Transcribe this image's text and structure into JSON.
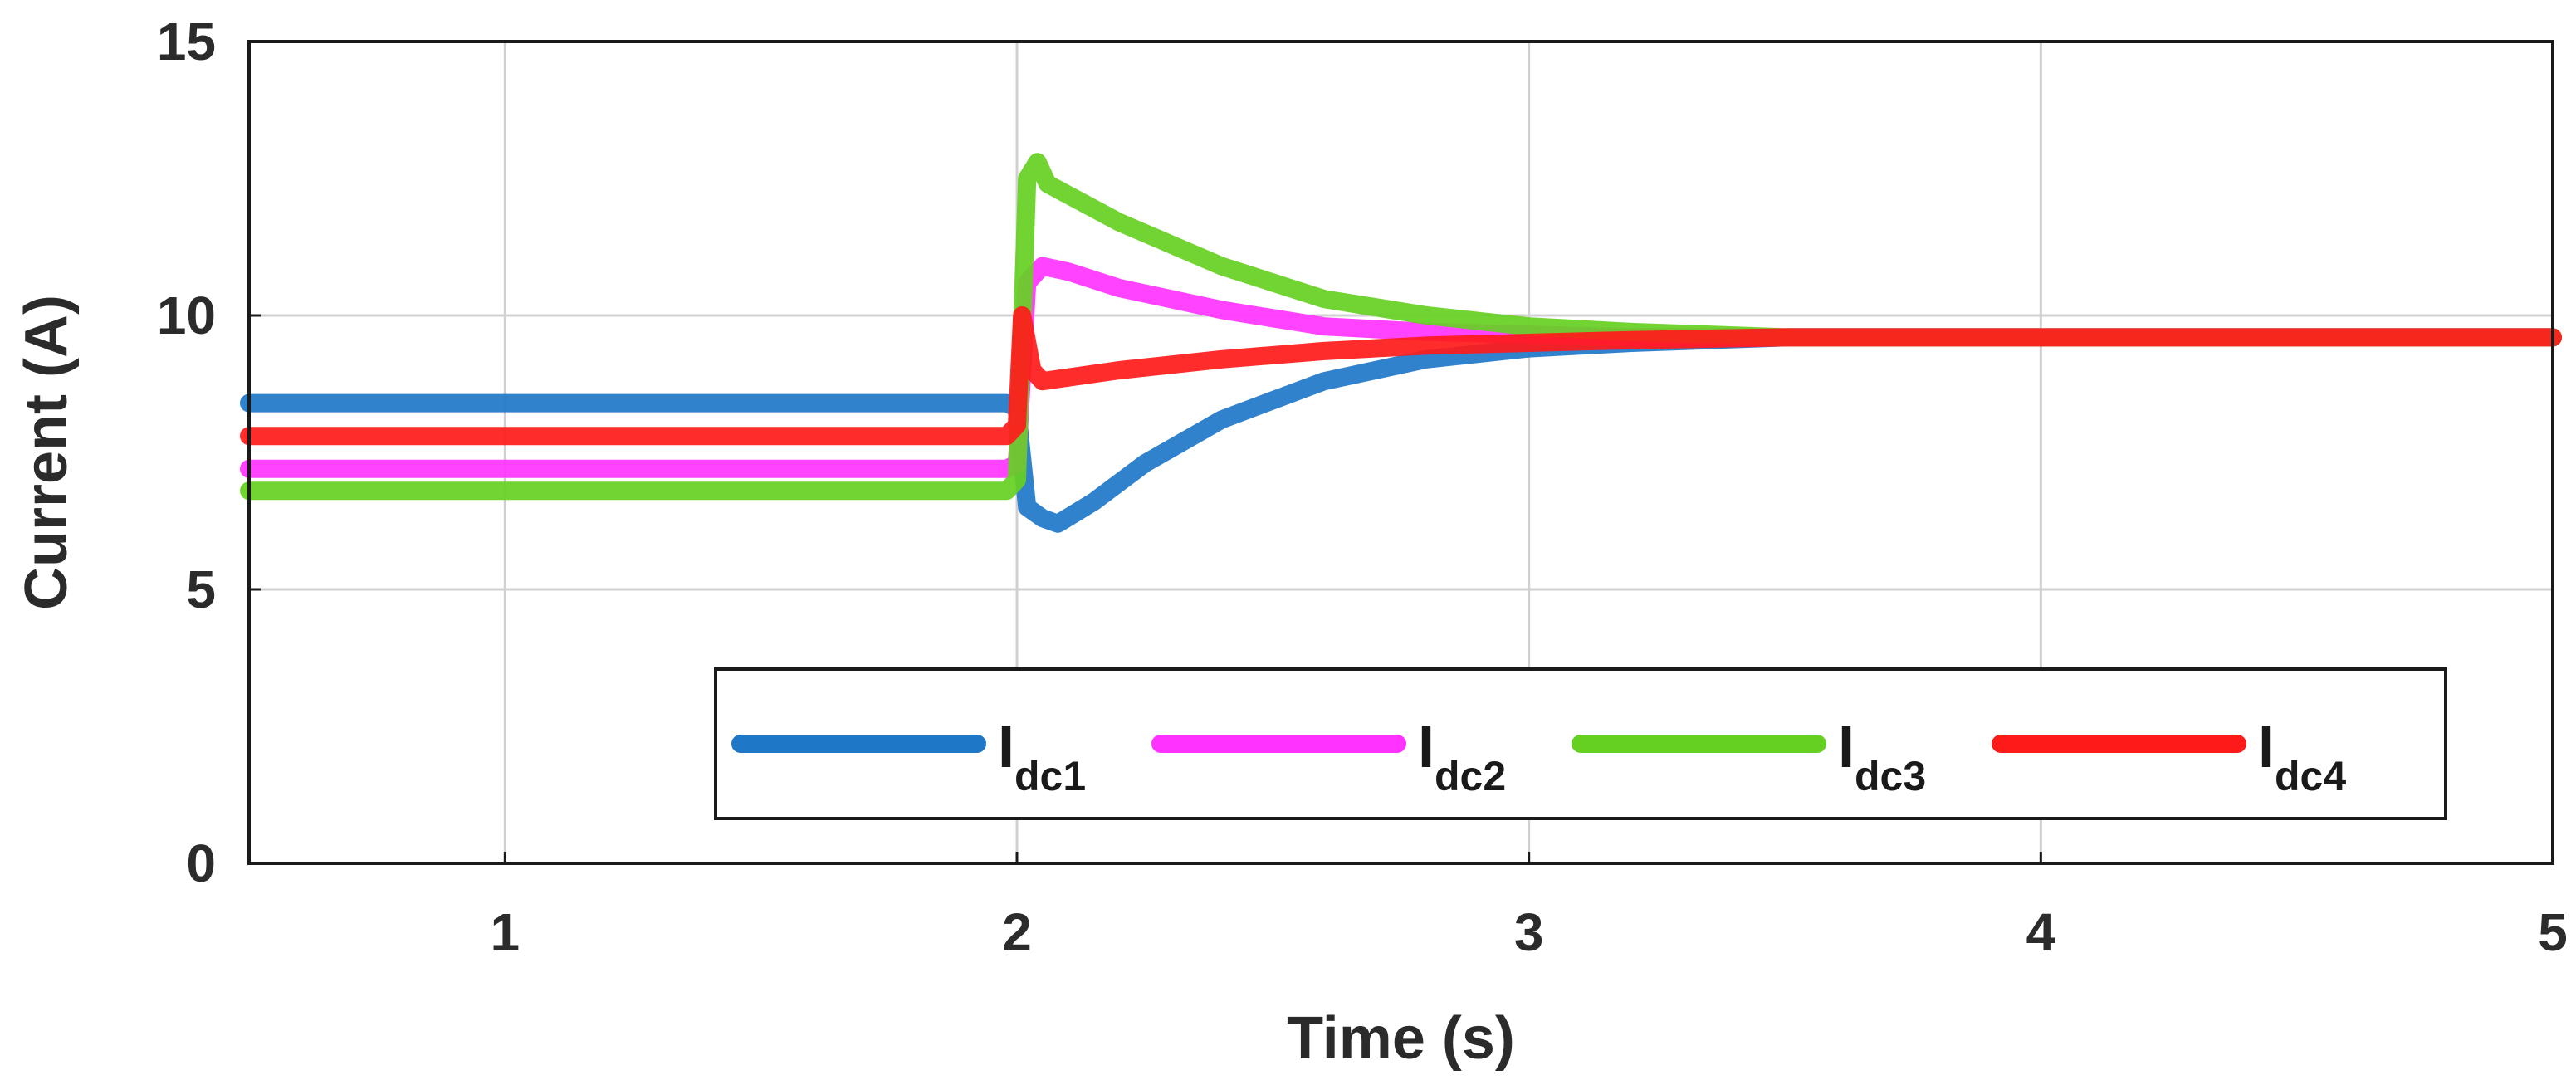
{
  "chart_data": {
    "type": "line",
    "title": "",
    "xlabel": "Time (s)",
    "ylabel": "Current (A)",
    "xlim": [
      0.5,
      5
    ],
    "ylim": [
      0,
      15
    ],
    "xticks": [
      1,
      2,
      3,
      4,
      5
    ],
    "yticks": [
      0,
      5,
      10,
      15
    ],
    "grid": true,
    "legend_position": "bottom-right",
    "series": [
      {
        "name": "I",
        "subscript": "dc1",
        "color": "#1f77c8",
        "x": [
          0.5,
          1.98,
          2.0,
          2.02,
          2.05,
          2.08,
          2.15,
          2.25,
          2.4,
          2.6,
          2.8,
          3.0,
          3.2,
          3.5,
          4.0,
          4.5,
          5.0
        ],
        "y": [
          8.4,
          8.4,
          8.3,
          6.5,
          6.3,
          6.2,
          6.6,
          7.3,
          8.1,
          8.8,
          9.2,
          9.4,
          9.5,
          9.6,
          9.6,
          9.6,
          9.6
        ]
      },
      {
        "name": "I",
        "subscript": "dc2",
        "color": "#ff33ff",
        "x": [
          0.5,
          1.98,
          2.0,
          2.02,
          2.05,
          2.1,
          2.2,
          2.4,
          2.6,
          2.8,
          3.0,
          3.2,
          3.5,
          4.0,
          4.5,
          5.0
        ],
        "y": [
          7.2,
          7.2,
          7.3,
          10.6,
          10.9,
          10.8,
          10.5,
          10.1,
          9.8,
          9.7,
          9.65,
          9.6,
          9.6,
          9.6,
          9.6,
          9.6
        ]
      },
      {
        "name": "I",
        "subscript": "dc3",
        "color": "#66d022",
        "x": [
          0.5,
          1.98,
          2.0,
          2.02,
          2.04,
          2.06,
          2.1,
          2.2,
          2.4,
          2.6,
          2.8,
          3.0,
          3.2,
          3.5,
          4.0,
          4.5,
          5.0
        ],
        "y": [
          6.8,
          6.8,
          7.0,
          12.5,
          12.8,
          12.4,
          12.2,
          11.7,
          10.9,
          10.3,
          10.0,
          9.8,
          9.7,
          9.6,
          9.6,
          9.6,
          9.6
        ]
      },
      {
        "name": "I",
        "subscript": "dc4",
        "color": "#ff1a1a",
        "x": [
          0.5,
          1.98,
          2.0,
          2.01,
          2.03,
          2.05,
          2.2,
          2.4,
          2.6,
          2.8,
          3.0,
          3.2,
          3.5,
          4.0,
          4.5,
          5.0
        ],
        "y": [
          7.8,
          7.8,
          8.0,
          10.0,
          9.0,
          8.8,
          9.0,
          9.2,
          9.35,
          9.45,
          9.5,
          9.55,
          9.6,
          9.6,
          9.6,
          9.6
        ]
      }
    ]
  }
}
